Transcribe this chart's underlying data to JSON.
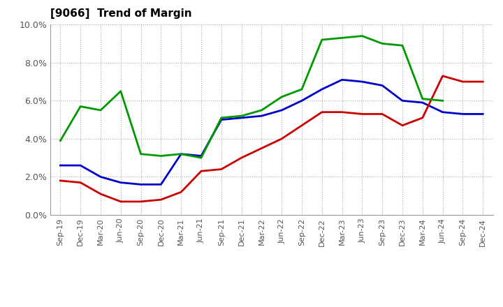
{
  "title": "[9066]  Trend of Margin",
  "x_labels": [
    "Sep-19",
    "Dec-19",
    "Mar-20",
    "Jun-20",
    "Sep-20",
    "Dec-20",
    "Mar-21",
    "Jun-21",
    "Sep-21",
    "Dec-21",
    "Mar-22",
    "Jun-22",
    "Sep-22",
    "Dec-22",
    "Mar-23",
    "Jun-23",
    "Sep-23",
    "Dec-23",
    "Mar-24",
    "Jun-24",
    "Sep-24",
    "Dec-24"
  ],
  "ordinary_income": [
    2.6,
    2.6,
    2.0,
    1.7,
    1.6,
    1.6,
    3.2,
    3.1,
    5.0,
    5.1,
    5.2,
    5.5,
    6.0,
    6.6,
    7.1,
    7.0,
    6.8,
    6.0,
    5.9,
    5.4,
    5.3,
    5.3
  ],
  "net_income": [
    1.8,
    1.7,
    1.1,
    0.7,
    0.7,
    0.8,
    1.2,
    2.3,
    2.4,
    3.0,
    3.5,
    4.0,
    4.7,
    5.4,
    5.4,
    5.3,
    5.3,
    4.7,
    5.1,
    7.3,
    7.0,
    7.0
  ],
  "operating_cashflow": [
    3.9,
    5.7,
    5.5,
    6.5,
    3.2,
    3.1,
    3.2,
    3.0,
    5.1,
    5.2,
    5.5,
    6.2,
    6.6,
    9.2,
    9.3,
    9.4,
    9.0,
    8.9,
    6.1,
    6.0,
    null,
    null
  ],
  "ordinary_income_color": "#0000cc",
  "net_income_color": "#cc0000",
  "operating_cashflow_color": "#009900",
  "ylim": [
    0.0,
    10.0
  ],
  "yticks": [
    0.0,
    2.0,
    4.0,
    6.0,
    8.0,
    10.0
  ],
  "ytick_labels": [
    "0.0%",
    "2.0%",
    "4.0%",
    "6.0%",
    "8.0%",
    "10.0%"
  ],
  "bg_color": "#ffffff",
  "plot_bg_color": "#ffffff",
  "grid_color": "#aaaaaa",
  "line_width": 2.0
}
